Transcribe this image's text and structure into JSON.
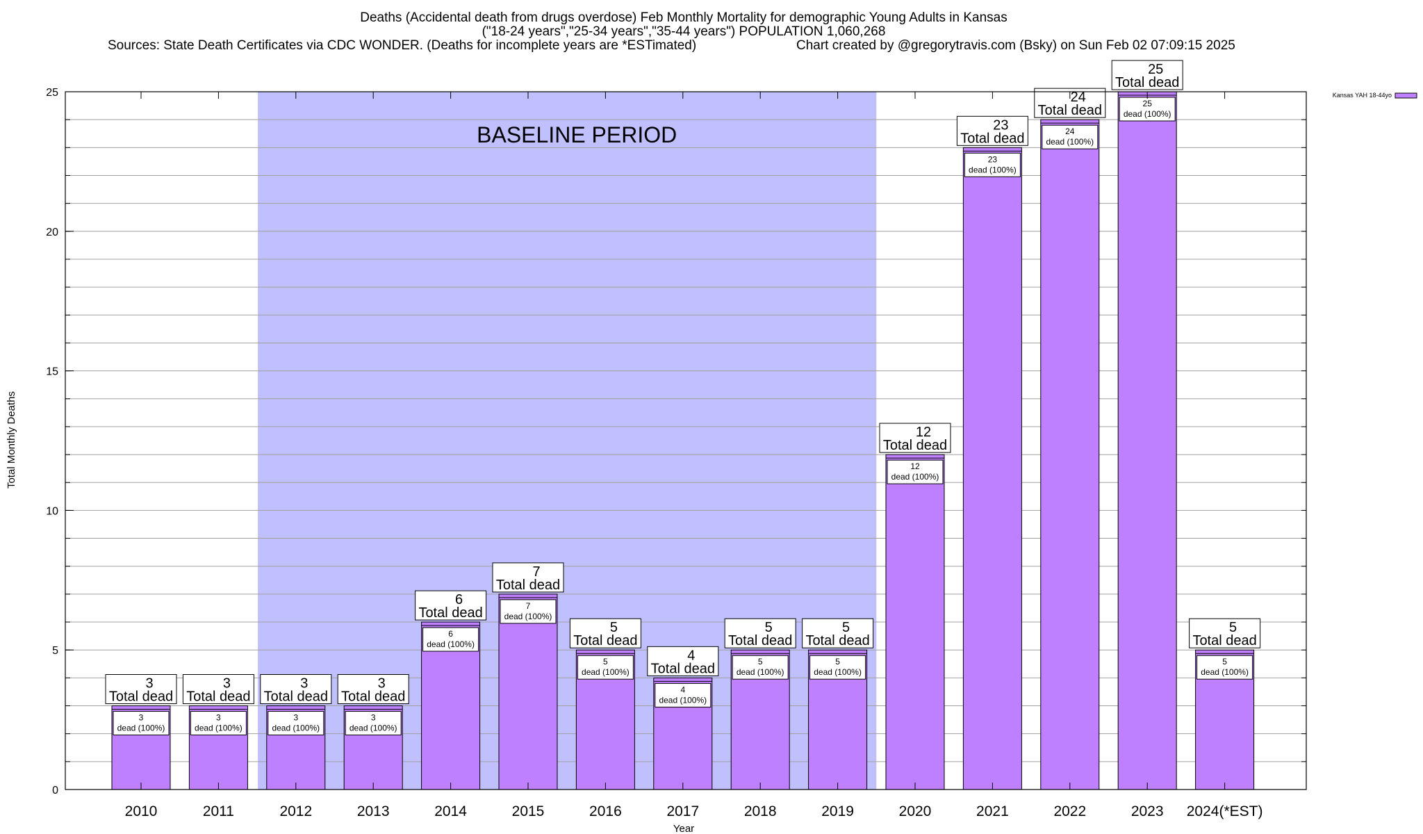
{
  "chart_data": {
    "type": "bar",
    "title_lines": [
      "Deaths (Accidental death from drugs overdose) Feb Monthly Mortality for demographic Young Adults in Kansas",
      "(\"18-24 years\",\"25-34 years\",\"35-44 years\") POPULATION 1,060,268",
      "Sources: State Death Certificates via CDC WONDER. (Deaths for incomplete years are *ESTimated)",
      "Chart created by @gregorytravis.com (Bsky) on Sun Feb 02 07:09:15 2025"
    ],
    "xlabel": "Year",
    "ylabel": "Total Monthly Deaths",
    "ylim": [
      0,
      25
    ],
    "y_ticks": [
      0,
      5,
      10,
      15,
      20,
      25
    ],
    "grid": true,
    "categories": [
      "2010",
      "2011",
      "2012",
      "2013",
      "2014",
      "2015",
      "2016",
      "2017",
      "2018",
      "2019",
      "2020",
      "2021",
      "2022",
      "2023",
      "2024(*EST)"
    ],
    "series": [
      {
        "name": "Kansas YAH 18-44yo",
        "color": "#bf80ff",
        "values": [
          3,
          3,
          3,
          3,
          6,
          7,
          5,
          4,
          5,
          5,
          12,
          23,
          24,
          25,
          5
        ]
      }
    ],
    "total_label_suffix": "Total dead",
    "inner_label_suffix": "dead (100%)",
    "baseline_region": {
      "label": "BASELINE PERIOD",
      "from": "2012",
      "to": "2019",
      "color": "#c0c0ff"
    },
    "legend_position": "top-right"
  }
}
